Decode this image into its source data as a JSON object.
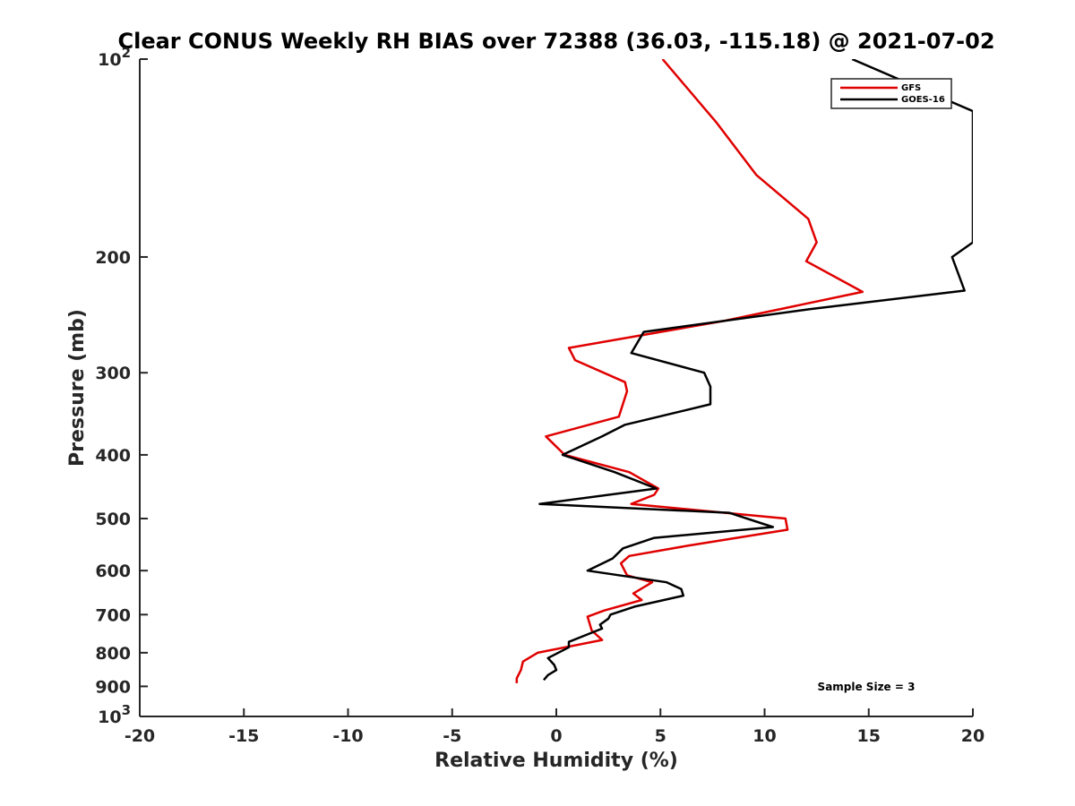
{
  "chart_data": {
    "type": "line",
    "title": "Clear CONUS Weekly RH BIAS over 72388 (36.03, -115.18) @ 2021-07-02",
    "xlabel": "Relative Humidity (%)",
    "ylabel": "Pressure (mb)",
    "xlim": [
      -20,
      20
    ],
    "ylim": [
      100,
      1000
    ],
    "y_scale": "log",
    "y_reversed": true,
    "x_ticks": [
      "-20",
      "-15",
      "-10",
      "-5",
      "0",
      "5",
      "10",
      "15",
      "20"
    ],
    "y_ticks": [
      {
        "value": 100,
        "base": "10",
        "exp": "2"
      },
      {
        "value": 200,
        "label": "200"
      },
      {
        "value": 300,
        "label": "300"
      },
      {
        "value": 400,
        "label": "400"
      },
      {
        "value": 500,
        "label": "500"
      },
      {
        "value": 600,
        "label": "600"
      },
      {
        "value": 700,
        "label": "700"
      },
      {
        "value": 800,
        "label": "800"
      },
      {
        "value": 900,
        "label": "900"
      },
      {
        "value": 1000,
        "base": "10",
        "exp": "3"
      }
    ],
    "legend_position": "top-right",
    "annotation": "Sample Size = 3",
    "series": [
      {
        "name": "GFS",
        "color": "#e00000",
        "points": [
          [
            5.1,
            100
          ],
          [
            7.7,
            125
          ],
          [
            9.6,
            150
          ],
          [
            12.1,
            175
          ],
          [
            12.5,
            190
          ],
          [
            12.0,
            203
          ],
          [
            14.7,
            226
          ],
          [
            8.1,
            250
          ],
          [
            0.6,
            275
          ],
          [
            0.9,
            287
          ],
          [
            3.3,
            310
          ],
          [
            3.4,
            320
          ],
          [
            3.0,
            350
          ],
          [
            -0.5,
            375
          ],
          [
            0.4,
            400
          ],
          [
            3.5,
            425
          ],
          [
            4.9,
            450
          ],
          [
            4.7,
            460
          ],
          [
            3.6,
            475
          ],
          [
            11.0,
            500
          ],
          [
            11.1,
            520
          ],
          [
            6.3,
            550
          ],
          [
            3.5,
            570
          ],
          [
            3.1,
            585
          ],
          [
            3.4,
            610
          ],
          [
            4.6,
            625
          ],
          [
            3.7,
            650
          ],
          [
            4.1,
            665
          ],
          [
            2.3,
            690
          ],
          [
            1.5,
            705
          ],
          [
            1.7,
            740
          ],
          [
            2.2,
            765
          ],
          [
            -0.9,
            800
          ],
          [
            -1.6,
            825
          ],
          [
            -1.7,
            850
          ],
          [
            -1.9,
            875
          ],
          [
            -1.9,
            890
          ]
        ]
      },
      {
        "name": "GOES-16",
        "color": "#000000",
        "points": [
          [
            14.2,
            100
          ],
          [
            20.0,
            120
          ],
          [
            20.0,
            190
          ],
          [
            19.0,
            200
          ],
          [
            19.6,
            225
          ],
          [
            12.2,
            240
          ],
          [
            4.2,
            260
          ],
          [
            3.6,
            280
          ],
          [
            7.1,
            300
          ],
          [
            7.4,
            315
          ],
          [
            7.4,
            335
          ],
          [
            3.3,
            360
          ],
          [
            2.2,
            375
          ],
          [
            0.3,
            400
          ],
          [
            2.8,
            425
          ],
          [
            4.8,
            450
          ],
          [
            -0.8,
            475
          ],
          [
            8.3,
            490
          ],
          [
            10.4,
            515
          ],
          [
            4.7,
            535
          ],
          [
            3.2,
            555
          ],
          [
            2.7,
            575
          ],
          [
            1.5,
            600
          ],
          [
            5.3,
            625
          ],
          [
            6.0,
            640
          ],
          [
            6.1,
            655
          ],
          [
            3.8,
            680
          ],
          [
            2.6,
            700
          ],
          [
            2.5,
            710
          ],
          [
            2.1,
            725
          ],
          [
            2.2,
            735
          ],
          [
            0.6,
            770
          ],
          [
            0.6,
            785
          ],
          [
            -0.4,
            815
          ],
          [
            -0.1,
            835
          ],
          [
            0.0,
            850
          ],
          [
            -0.4,
            865
          ],
          [
            -0.6,
            880
          ]
        ]
      }
    ]
  }
}
